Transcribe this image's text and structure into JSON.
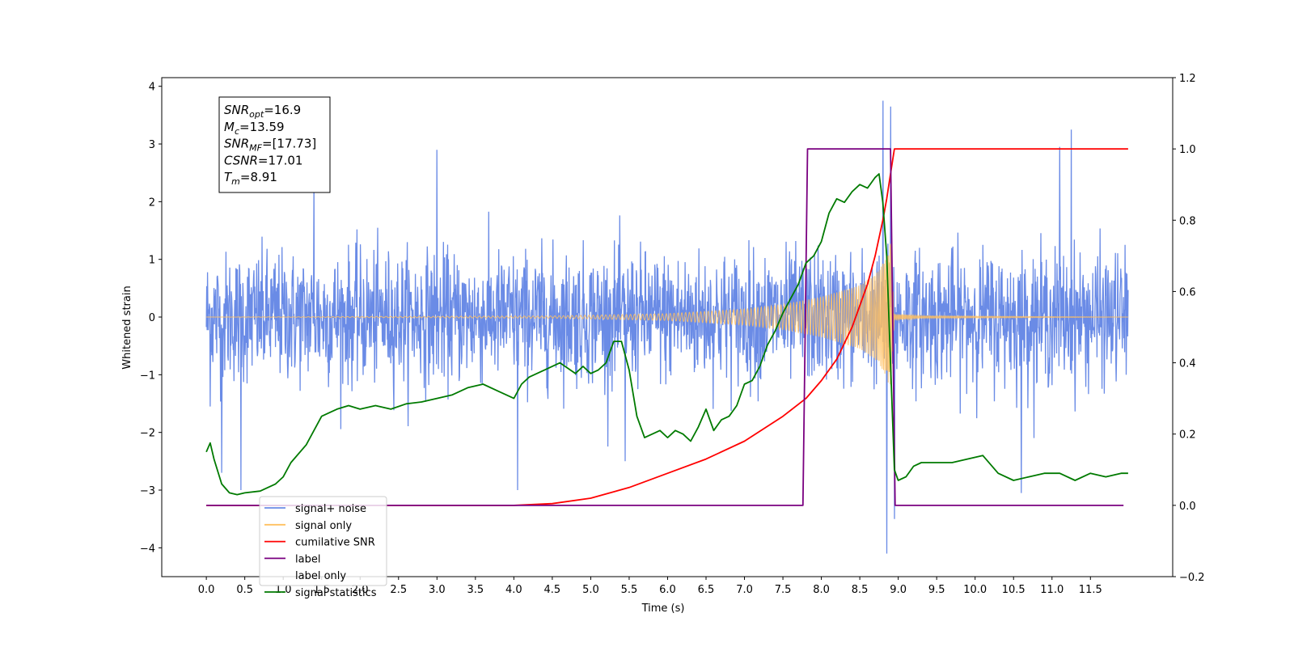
{
  "chart_data": {
    "type": "line",
    "title": "",
    "xlabel": "Time (s)",
    "ylabel": "Whitened strain",
    "xlim": [
      -0.58,
      12.57
    ],
    "ylim": [
      -4.5,
      4.15
    ],
    "y2lim": [
      -0.2,
      1.2
    ],
    "xticks": [
      0.0,
      0.5,
      1.0,
      1.5,
      2.0,
      2.5,
      3.0,
      3.5,
      4.0,
      4.5,
      5.0,
      5.5,
      6.0,
      6.5,
      7.0,
      7.5,
      8.0,
      8.5,
      9.0,
      9.5,
      10.0,
      10.5,
      11.0,
      11.5
    ],
    "xtick_labels": [
      "0.0",
      "0.5",
      "1.0",
      "1.5",
      "2.0",
      "2.5",
      "3.0",
      "3.5",
      "4.0",
      "4.5",
      "5.0",
      "5.5",
      "6.0",
      "6.5",
      "7.0",
      "7.5",
      "8.0",
      "8.5",
      "9.0",
      "9.5",
      "10.0",
      "10.5",
      "11.0",
      "11.5"
    ],
    "yticks": [
      -4,
      -3,
      -2,
      -1,
      0,
      1,
      2,
      3,
      4
    ],
    "ytick_labels": [
      "−4",
      "−3",
      "−2",
      "−1",
      "0",
      "1",
      "2",
      "3",
      "4"
    ],
    "y2ticks": [
      -0.2,
      0.0,
      0.2,
      0.4,
      0.6,
      0.8,
      1.0,
      1.2
    ],
    "y2tick_labels": [
      "−0.2",
      "0.0",
      "0.2",
      "0.4",
      "0.6",
      "0.8",
      "1.0",
      "1.2"
    ],
    "grid": false,
    "legend_position": "lower-left",
    "annotation": {
      "lines": [
        {
          "base": "SNR",
          "sub": "opt",
          "rest": "=16.9"
        },
        {
          "base": "M",
          "sub": "c",
          "rest": "=13.59"
        },
        {
          "base": "SNR",
          "sub": "MF",
          "rest": "=[17.73]"
        },
        {
          "base": "CSNR",
          "sub": "",
          "rest": "=17.01"
        },
        {
          "base": "T",
          "sub": "m",
          "rest": "=8.91"
        }
      ]
    },
    "noise": {
      "t_start": 0.0,
      "t_end": 11.99,
      "typical_abs": 0.9,
      "peak_abs": 2.4,
      "spikes": [
        {
          "t": 0.05,
          "y": -1.55
        },
        {
          "t": 0.2,
          "y": -2.7
        },
        {
          "t": 0.45,
          "y": -3.0
        },
        {
          "t": 1.4,
          "y": 2.4
        },
        {
          "t": 3.0,
          "y": 2.9
        },
        {
          "t": 4.05,
          "y": -3.0
        },
        {
          "t": 5.45,
          "y": -2.5
        },
        {
          "t": 8.8,
          "y": 3.75
        },
        {
          "t": 8.85,
          "y": -4.1
        },
        {
          "t": 8.9,
          "y": 3.65
        },
        {
          "t": 8.95,
          "y": -3.5
        },
        {
          "t": 10.6,
          "y": -3.05
        },
        {
          "t": 11.25,
          "y": 3.25
        },
        {
          "t": 11.1,
          "y": 2.95
        }
      ]
    },
    "chirp": {
      "t_start": 0.0,
      "t_merge": 8.9,
      "t_end": 11.99,
      "envelope": [
        [
          0.0,
          0.0
        ],
        [
          4.5,
          0.02
        ],
        [
          6.0,
          0.06
        ],
        [
          7.0,
          0.14
        ],
        [
          7.5,
          0.22
        ],
        [
          8.0,
          0.35
        ],
        [
          8.5,
          0.55
        ],
        [
          8.75,
          0.8
        ],
        [
          8.85,
          1.05
        ],
        [
          8.9,
          1.3
        ],
        [
          8.95,
          0.05
        ],
        [
          9.3,
          0.02
        ],
        [
          11.99,
          0.0
        ]
      ]
    },
    "series": [
      {
        "name": "signal+ noise",
        "color": "#6a8be6",
        "axis": "left",
        "x": [],
        "y": []
      },
      {
        "name": "signal only",
        "color": "#ffc060",
        "axis": "left",
        "x": [],
        "y": []
      },
      {
        "name": "cumilative SNR",
        "color": "#ff0000",
        "axis": "right",
        "x": [
          0.0,
          4.0,
          4.5,
          5.0,
          5.5,
          6.0,
          6.5,
          7.0,
          7.5,
          7.8,
          8.0,
          8.2,
          8.4,
          8.6,
          8.7,
          8.8,
          8.85,
          8.9,
          8.95,
          11.99
        ],
        "y": [
          0.0,
          0.0,
          0.005,
          0.02,
          0.05,
          0.09,
          0.13,
          0.18,
          0.25,
          0.3,
          0.35,
          0.41,
          0.5,
          0.62,
          0.7,
          0.8,
          0.86,
          0.93,
          1.0,
          1.0
        ]
      },
      {
        "name": "label",
        "color": "#7a0080",
        "axis": "right",
        "x": [
          0.0,
          7.76,
          7.82,
          8.9,
          8.96,
          11.93
        ],
        "y": [
          0.0,
          0.0,
          1.0,
          1.0,
          0.0,
          0.0
        ]
      },
      {
        "name": "label only",
        "color": "#ffffff",
        "axis": "right",
        "x": [],
        "y": []
      },
      {
        "name": "signal statistics",
        "color": "#007a00",
        "axis": "right",
        "x": [
          0.0,
          0.05,
          0.1,
          0.2,
          0.3,
          0.4,
          0.5,
          0.7,
          0.9,
          1.0,
          1.1,
          1.3,
          1.5,
          1.7,
          1.85,
          2.0,
          2.2,
          2.4,
          2.6,
          2.8,
          3.0,
          3.2,
          3.4,
          3.6,
          3.8,
          4.0,
          4.1,
          4.2,
          4.4,
          4.6,
          4.8,
          4.9,
          5.0,
          5.1,
          5.2,
          5.3,
          5.4,
          5.5,
          5.6,
          5.7,
          5.8,
          5.9,
          6.0,
          6.1,
          6.2,
          6.3,
          6.4,
          6.5,
          6.6,
          6.7,
          6.8,
          6.9,
          7.0,
          7.1,
          7.2,
          7.3,
          7.4,
          7.5,
          7.6,
          7.7,
          7.8,
          7.9,
          8.0,
          8.1,
          8.2,
          8.3,
          8.4,
          8.5,
          8.6,
          8.7,
          8.75,
          8.8,
          8.85,
          8.9,
          8.95,
          9.0,
          9.1,
          9.2,
          9.3,
          9.5,
          9.7,
          9.9,
          10.1,
          10.3,
          10.5,
          10.7,
          10.9,
          11.1,
          11.3,
          11.5,
          11.7,
          11.9,
          11.99
        ],
        "y": [
          0.15,
          0.175,
          0.13,
          0.06,
          0.035,
          0.03,
          0.035,
          0.04,
          0.06,
          0.08,
          0.12,
          0.17,
          0.25,
          0.27,
          0.28,
          0.27,
          0.28,
          0.27,
          0.285,
          0.29,
          0.3,
          0.31,
          0.33,
          0.34,
          0.32,
          0.3,
          0.34,
          0.36,
          0.38,
          0.4,
          0.37,
          0.39,
          0.37,
          0.38,
          0.4,
          0.46,
          0.46,
          0.38,
          0.25,
          0.19,
          0.2,
          0.21,
          0.19,
          0.21,
          0.2,
          0.18,
          0.22,
          0.27,
          0.21,
          0.24,
          0.25,
          0.28,
          0.34,
          0.35,
          0.39,
          0.45,
          0.49,
          0.54,
          0.58,
          0.62,
          0.68,
          0.7,
          0.74,
          0.82,
          0.86,
          0.85,
          0.88,
          0.9,
          0.89,
          0.92,
          0.93,
          0.85,
          0.7,
          0.4,
          0.1,
          0.07,
          0.08,
          0.11,
          0.12,
          0.12,
          0.12,
          0.13,
          0.14,
          0.09,
          0.07,
          0.08,
          0.09,
          0.09,
          0.07,
          0.09,
          0.08,
          0.09,
          0.09
        ]
      }
    ]
  }
}
